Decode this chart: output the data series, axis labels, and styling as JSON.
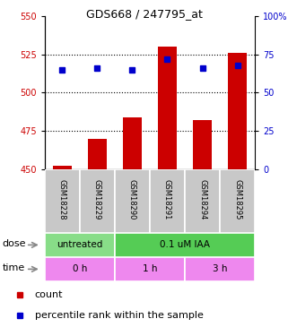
{
  "title": "GDS668 / 247795_at",
  "samples": [
    "GSM18228",
    "GSM18229",
    "GSM18290",
    "GSM18291",
    "GSM18294",
    "GSM18295"
  ],
  "bar_values": [
    452,
    470,
    484,
    530,
    482,
    526
  ],
  "percentile_values": [
    515,
    516,
    515,
    522,
    516,
    518
  ],
  "ylim_left": [
    450,
    550
  ],
  "ylim_right": [
    0,
    100
  ],
  "yticks_left": [
    450,
    475,
    500,
    525,
    550
  ],
  "yticks_right": [
    0,
    25,
    50,
    75,
    100
  ],
  "bar_color": "#cc0000",
  "dot_color": "#0000cc",
  "bar_width": 0.55,
  "grid_yticks": [
    475,
    500,
    525
  ],
  "dose_row_label": "dose",
  "time_row_label": "time",
  "legend_count_label": "count",
  "legend_pct_label": "percentile rank within the sample",
  "dose_untreated_color": "#88dd88",
  "dose_iaa_color": "#55cc55",
  "time_color": "#ee88ee",
  "label_row_color": "#c8c8c8",
  "title_fontsize": 9,
  "axis_fontsize": 7,
  "label_fontsize": 6,
  "row_label_fontsize": 8,
  "annot_fontsize": 7.5
}
